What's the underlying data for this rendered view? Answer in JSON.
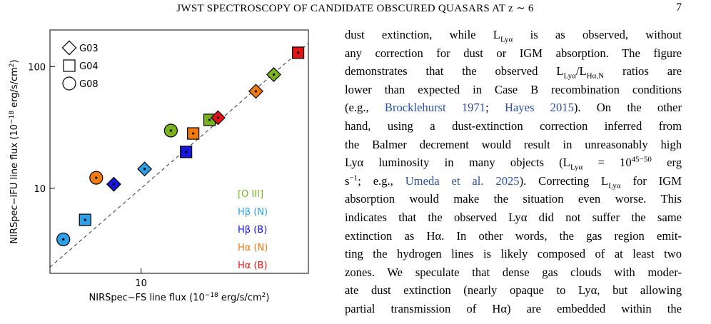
{
  "header": {
    "title": "JWST SPECTROSCOPY OF CANDIDATE OBSCURED QUASARS AT z ∼ 6",
    "page": "7"
  },
  "chart_data": {
    "type": "scatter",
    "log_x": true,
    "log_y": true,
    "grid": false,
    "x_label": [
      "NIRSpec−FS line flux (10",
      "−18",
      " erg/s/cm",
      "2",
      ")"
    ],
    "y_label": [
      "NIRSpec−IFU line flux (10",
      "−18",
      " erg/s/cm",
      "2",
      ")"
    ],
    "xlim": [
      2.25,
      155
    ],
    "ylim": [
      2,
      200
    ],
    "xticks": [
      10
    ],
    "yticks": [
      10,
      100
    ],
    "markers": [
      {
        "name": "G03",
        "shape": "diamond"
      },
      {
        "name": "G04",
        "shape": "square"
      },
      {
        "name": "G08",
        "shape": "circle"
      }
    ],
    "series": [
      {
        "name": "[O III]",
        "color": "#79b41e",
        "galaxy": [
          "G08",
          "G04",
          "G03"
        ],
        "x": [
          16.3,
          30.7,
          87.9
        ],
        "values": [
          29.8,
          36.5,
          86
        ]
      },
      {
        "name": "Hβ (N)",
        "color": "#2e9fe6",
        "galaxy": [
          "G08",
          "G04",
          "G03"
        ],
        "x": [
          2.8,
          4.0,
          10.6
        ],
        "values": [
          3.8,
          5.5,
          14.4
        ]
      },
      {
        "name": "Hβ (B)",
        "color": "#1616dc",
        "galaxy": [
          "G03",
          "G04"
        ],
        "x": [
          6.4,
          20.9
        ],
        "values": [
          10.8,
          19.9
        ]
      },
      {
        "name": "Hα (N)",
        "color": "#f27a12",
        "galaxy": [
          "G08",
          "G04",
          "G03"
        ],
        "x": [
          4.8,
          23.5,
          65.6
        ],
        "values": [
          12.2,
          28.2,
          62.7
        ]
      },
      {
        "name": "Hα (B)",
        "color": "#e01414",
        "galaxy": [
          "G03",
          "G04"
        ],
        "x": [
          35.3,
          131
        ],
        "values": [
          38,
          130
        ]
      }
    ]
  },
  "text": {
    "lines": [
      [
        "dust extinction, while L",
        {
          "sub": "Lyα"
        },
        " is as observed, without"
      ],
      [
        "any correction for dust or IGM absorption. The figure"
      ],
      [
        "demonstrates that the observed L",
        {
          "sub": "Lyα"
        },
        "/L",
        {
          "sub": "Hα,N"
        },
        " ratios are"
      ],
      [
        "lower than expected in Case B recombination conditions"
      ],
      [
        "(e.g., ",
        {
          "link": "Brocklehurst 1971"
        },
        "; ",
        {
          "link": "Hayes 2015"
        },
        ").  On the other"
      ],
      [
        "hand, using a dust-extinction correction inferred from"
      ],
      [
        "the Balmer decrement would result in unreasonably high"
      ],
      [
        "Lyα luminosity in many objects (L",
        {
          "sub": "Lyα"
        },
        " = 10",
        {
          "sup": "45−50"
        },
        " erg"
      ],
      [
        "s",
        {
          "sup": "−1"
        },
        "; e.g., ",
        {
          "link": "Umeda et al. 2025"
        },
        ").  Correcting L",
        {
          "sub": "Lyα"
        },
        " for IGM"
      ],
      [
        "absorption would make the situation even worse.  This"
      ],
      [
        "indicates that the observed Lyα did not suffer the same"
      ],
      [
        "extinction as Hα.  In other words, the gas region emit-"
      ],
      [
        "ting the hydrogen lines is likely composed of at least two"
      ],
      [
        "zones.  We speculate that dense gas clouds with moder-"
      ],
      [
        "ate dust extinction (nearly opaque to Lyα, but allowing"
      ],
      [
        "partial transmission of Hα) are embedded within the"
      ]
    ]
  }
}
